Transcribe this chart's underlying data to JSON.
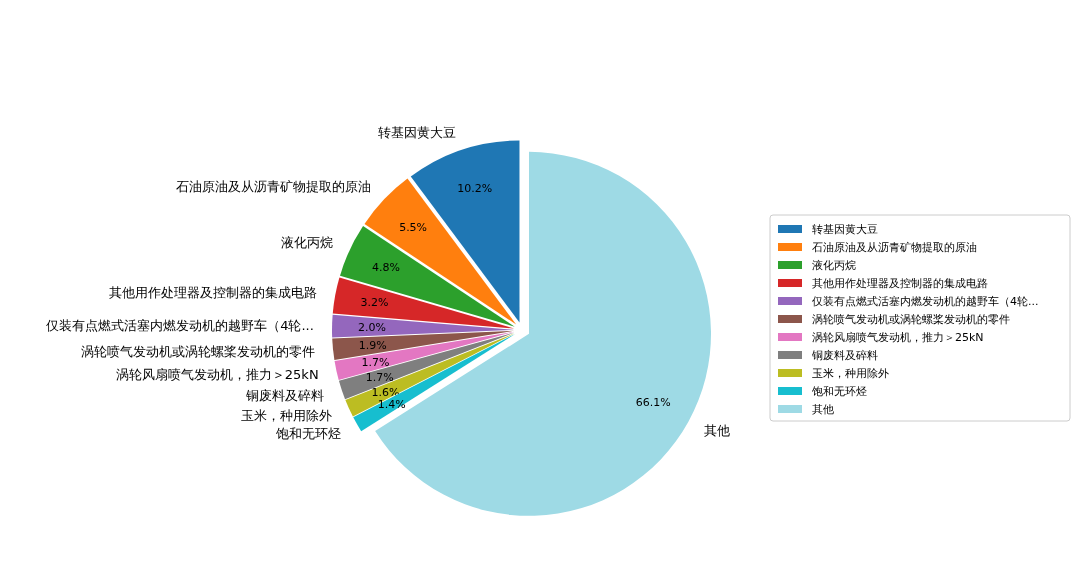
{
  "chart_data": {
    "type": "pie",
    "categories": [
      "转基因黄大豆",
      "石油原油及从沥青矿物提取的原油",
      "液化丙烷",
      "其他用作处理器及控制器的集成电路",
      "仅装有点燃式活塞内燃发动机的越野车（4轮...",
      "涡轮喷气发动机或涡轮螺桨发动机的零件",
      "涡轮风扇喷气发动机，推力＞25kN",
      "铜废料及碎料",
      "玉米，种用除外",
      "饱和无环烃",
      "其他"
    ],
    "values": [
      10.2,
      5.5,
      4.8,
      3.2,
      2.0,
      1.9,
      1.7,
      1.7,
      1.6,
      1.4,
      66.1
    ],
    "colors": [
      "#1f77b4",
      "#ff7f0e",
      "#2ca02c",
      "#d62728",
      "#9467bd",
      "#8c564b",
      "#e377c2",
      "#7f7f7f",
      "#bcbd22",
      "#17becf",
      "#9edae5"
    ],
    "value_labels": [
      "10.2%",
      "5.5%",
      "4.8%",
      "3.2%",
      "2.0%",
      "1.9%",
      "1.7%",
      "1.7%",
      "1.6%",
      "1.4%",
      "66.1%"
    ],
    "legend": "right"
  }
}
